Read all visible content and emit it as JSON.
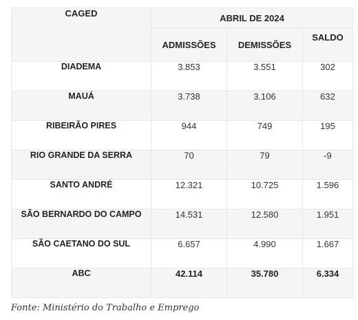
{
  "table": {
    "corner_label": "CAGED",
    "period_label": "ABRIL DE 2024",
    "columns": [
      "ADMISSÕES",
      "DEMISSÕES",
      "SALDO"
    ],
    "rows": [
      {
        "name": "DIADEMA",
        "admissoes": "3.853",
        "demissoes": "3.551",
        "saldo": "302"
      },
      {
        "name": "MAUÁ",
        "admissoes": "3.738",
        "demissoes": "3.106",
        "saldo": "632"
      },
      {
        "name": "RIBEIRÃO PIRES",
        "admissoes": "944",
        "demissoes": "749",
        "saldo": "195"
      },
      {
        "name": "RIO GRANDE DA SERRA",
        "admissoes": "70",
        "demissoes": "79",
        "saldo": "-9"
      },
      {
        "name": "SANTO ANDRÉ",
        "admissoes": "12.321",
        "demissoes": "10.725",
        "saldo": "1.596"
      },
      {
        "name": "SÃO BERNARDO DO CAMPO",
        "admissoes": "14.531",
        "demissoes": "12.580",
        "saldo": "1.951"
      },
      {
        "name": "SÃO CAETANO DO SUL",
        "admissoes": "6.657",
        "demissoes": "4.990",
        "saldo": "1.667"
      },
      {
        "name": "ABC",
        "admissoes": "42.114",
        "demissoes": "35.780",
        "saldo": "6.334"
      }
    ]
  },
  "source": "Fonte: Ministério do Trabalho e Emprego"
}
